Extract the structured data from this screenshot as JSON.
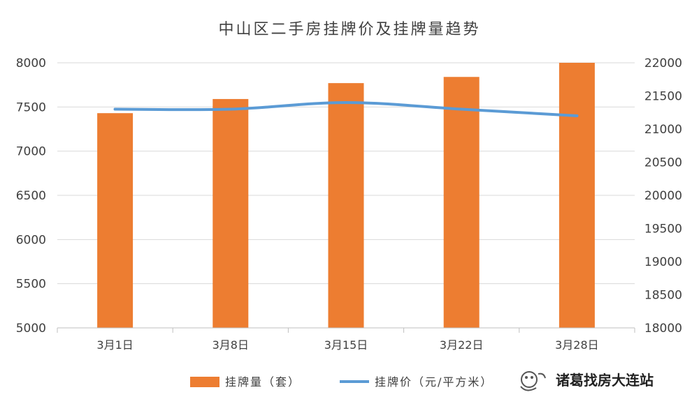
{
  "chart_data": {
    "type": "bar",
    "title": "中山区二手房挂牌价及挂牌量趋势",
    "categories": [
      "3月1日",
      "3月8日",
      "3月15日",
      "3月22日",
      "3月28日"
    ],
    "series": [
      {
        "name": "挂牌量（套）",
        "type": "bar",
        "axis": "left",
        "values": [
          7430,
          7590,
          7770,
          7840,
          8000
        ],
        "color": "#ed7d31"
      },
      {
        "name": "挂牌价（元/平方米）",
        "type": "line",
        "axis": "right",
        "values": [
          21300,
          21300,
          21400,
          21300,
          21200
        ],
        "color": "#5b9bd5"
      }
    ],
    "y_left": {
      "min": 5000,
      "max": 8000,
      "ticks": [
        5000,
        5500,
        6000,
        6500,
        7000,
        7500,
        8000
      ]
    },
    "y_right": {
      "min": 18000,
      "max": 22000,
      "ticks": [
        18000,
        18500,
        19000,
        19500,
        20000,
        20500,
        21000,
        21500,
        22000
      ]
    },
    "grid": true,
    "legend_position": "bottom"
  },
  "watermark": {
    "text": "诸葛找房大连站"
  },
  "colors": {
    "background": "#ffffff",
    "grid": "#d9d9d9",
    "text": "#404040"
  }
}
